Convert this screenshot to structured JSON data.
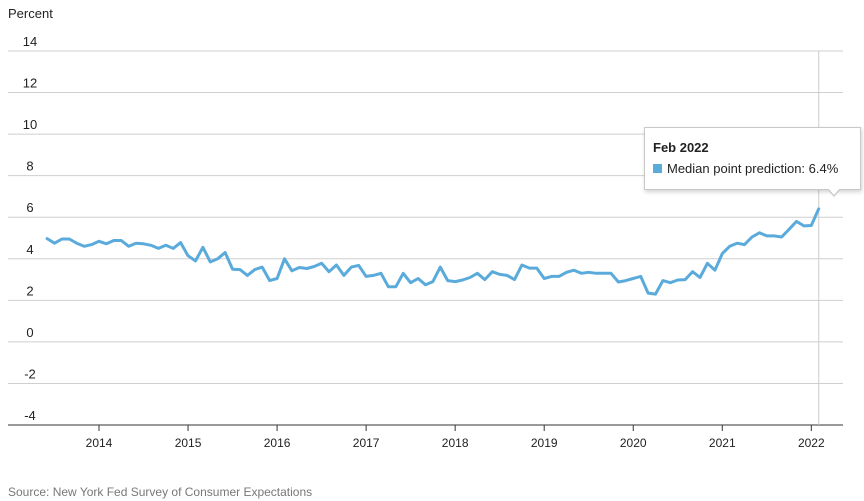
{
  "chart_data": {
    "type": "line",
    "ylabel": "Percent",
    "ylim": [
      -4,
      14
    ],
    "yticks": [
      "14",
      "12",
      "10",
      "8",
      "6",
      "4",
      "2",
      "0",
      "-2",
      "-4"
    ],
    "xticks": [
      "2014",
      "2015",
      "2016",
      "2017",
      "2018",
      "2019",
      "2020",
      "2021",
      "2022"
    ],
    "grid": true,
    "series": [
      {
        "name": "Median point prediction",
        "color": "#5aabdb",
        "x": [
          "Jun 2013",
          "Jul 2013",
          "Aug 2013",
          "Sep 2013",
          "Oct 2013",
          "Nov 2013",
          "Dec 2013",
          "Jan 2014",
          "Feb 2014",
          "Mar 2014",
          "Apr 2014",
          "May 2014",
          "Jun 2014",
          "Jul 2014",
          "Aug 2014",
          "Sep 2014",
          "Oct 2014",
          "Nov 2014",
          "Dec 2014",
          "Jan 2015",
          "Feb 2015",
          "Mar 2015",
          "Apr 2015",
          "May 2015",
          "Jun 2015",
          "Jul 2015",
          "Aug 2015",
          "Sep 2015",
          "Oct 2015",
          "Nov 2015",
          "Dec 2015",
          "Jan 2016",
          "Feb 2016",
          "Mar 2016",
          "Apr 2016",
          "May 2016",
          "Jun 2016",
          "Jul 2016",
          "Aug 2016",
          "Sep 2016",
          "Oct 2016",
          "Nov 2016",
          "Dec 2016",
          "Jan 2017",
          "Feb 2017",
          "Mar 2017",
          "Apr 2017",
          "May 2017",
          "Jun 2017",
          "Jul 2017",
          "Aug 2017",
          "Sep 2017",
          "Oct 2017",
          "Nov 2017",
          "Dec 2017",
          "Jan 2018",
          "Feb 2018",
          "Mar 2018",
          "Apr 2018",
          "May 2018",
          "Jun 2018",
          "Jul 2018",
          "Aug 2018",
          "Sep 2018",
          "Oct 2018",
          "Nov 2018",
          "Dec 2018",
          "Jan 2019",
          "Feb 2019",
          "Mar 2019",
          "Apr 2019",
          "May 2019",
          "Jun 2019",
          "Jul 2019",
          "Aug 2019",
          "Sep 2019",
          "Oct 2019",
          "Nov 2019",
          "Dec 2019",
          "Jan 2020",
          "Feb 2020",
          "Mar 2020",
          "Apr 2020",
          "May 2020",
          "Jun 2020",
          "Jul 2020",
          "Aug 2020",
          "Sep 2020",
          "Oct 2020",
          "Nov 2020",
          "Dec 2020",
          "Jan 2021",
          "Feb 2021",
          "Mar 2021",
          "Apr 2021",
          "May 2021",
          "Jun 2021",
          "Jul 2021",
          "Aug 2021",
          "Sep 2021",
          "Oct 2021",
          "Nov 2021",
          "Dec 2021",
          "Jan 2022",
          "Feb 2022"
        ],
        "values": [
          4.97,
          4.75,
          4.95,
          4.95,
          4.75,
          4.6,
          4.68,
          4.84,
          4.72,
          4.88,
          4.88,
          4.6,
          4.75,
          4.72,
          4.65,
          4.5,
          4.65,
          4.5,
          4.78,
          4.15,
          3.9,
          4.55,
          3.85,
          4.0,
          4.3,
          3.5,
          3.48,
          3.2,
          3.48,
          3.6,
          2.95,
          3.05,
          4.0,
          3.42,
          3.58,
          3.53,
          3.63,
          3.78,
          3.38,
          3.7,
          3.2,
          3.6,
          3.68,
          3.15,
          3.2,
          3.3,
          2.65,
          2.65,
          3.3,
          2.85,
          3.05,
          2.75,
          2.9,
          3.6,
          2.95,
          2.9,
          2.98,
          3.1,
          3.3,
          3.0,
          3.38,
          3.25,
          3.2,
          3.0,
          3.7,
          3.55,
          3.55,
          3.05,
          3.15,
          3.15,
          3.35,
          3.45,
          3.3,
          3.35,
          3.3,
          3.3,
          3.3,
          2.88,
          2.95,
          3.05,
          3.15,
          2.35,
          2.3,
          2.95,
          2.85,
          2.98,
          3.0,
          3.38,
          3.1,
          3.78,
          3.45,
          4.25,
          4.6,
          4.75,
          4.68,
          5.05,
          5.25,
          5.1,
          5.1,
          5.05,
          5.42,
          5.8,
          5.58,
          5.6,
          6.4
        ]
      }
    ],
    "tooltip": {
      "title": "Feb 2022",
      "label": "Median point prediction: 6.4%"
    },
    "source": "Source: New York Fed Survey of Consumer Expectations"
  }
}
